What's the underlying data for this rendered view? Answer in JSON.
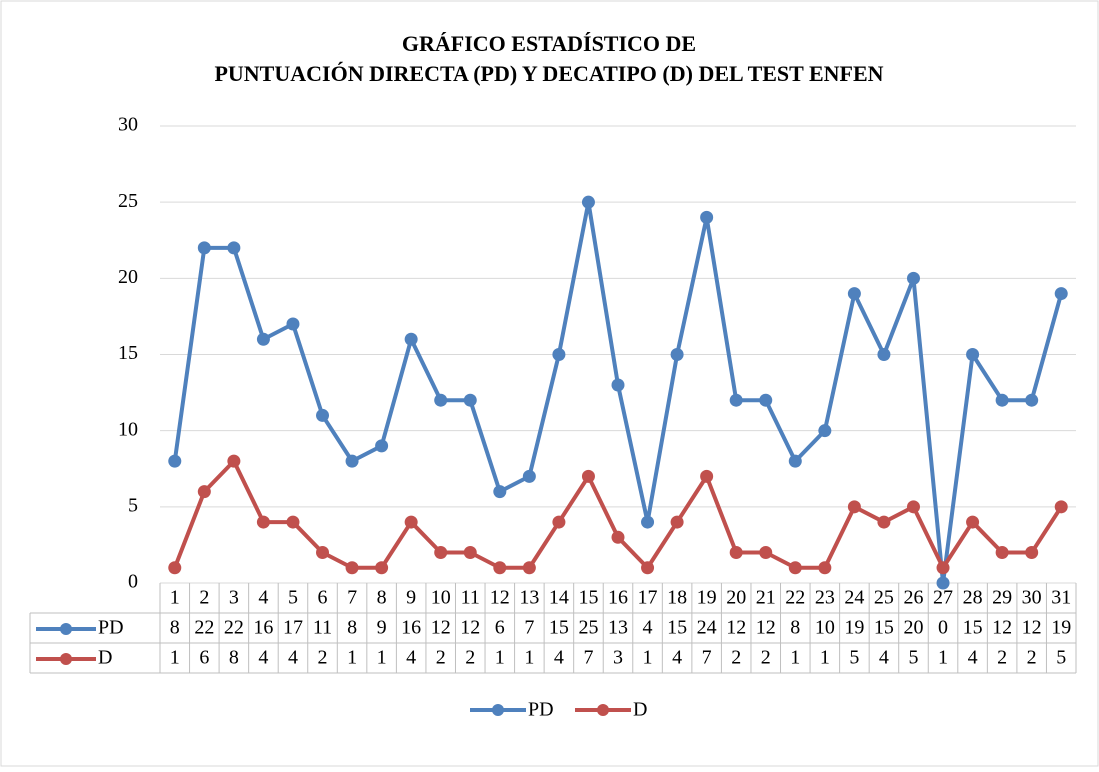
{
  "chart_data": {
    "type": "line",
    "title": "GRÁFICO ESTADÍSTICO DE",
    "subtitle": "PUNTUACIÓN DIRECTA (PD) Y DECATIPO (D) DEL TEST ENFEN",
    "categories": [
      "1",
      "2",
      "3",
      "4",
      "5",
      "6",
      "7",
      "8",
      "9",
      "10",
      "11",
      "12",
      "13",
      "14",
      "15",
      "16",
      "17",
      "18",
      "19",
      "20",
      "21",
      "22",
      "23",
      "24",
      "25",
      "26",
      "27",
      "28",
      "29",
      "30",
      "31"
    ],
    "series": [
      {
        "name": "PD",
        "color": "#4f81bd",
        "values": [
          8,
          22,
          22,
          16,
          17,
          11,
          8,
          9,
          16,
          12,
          12,
          6,
          7,
          15,
          25,
          13,
          4,
          15,
          24,
          12,
          12,
          8,
          10,
          19,
          15,
          20,
          0,
          15,
          12,
          12,
          19
        ]
      },
      {
        "name": "D",
        "color": "#c0504d",
        "values": [
          1,
          6,
          8,
          4,
          4,
          2,
          1,
          1,
          4,
          2,
          2,
          1,
          1,
          4,
          7,
          3,
          1,
          4,
          7,
          2,
          2,
          1,
          1,
          5,
          4,
          5,
          1,
          4,
          2,
          2,
          5
        ]
      }
    ],
    "ylim": [
      0,
      30
    ],
    "yticks": [
      0,
      5,
      10,
      15,
      20,
      25,
      30
    ],
    "grid": true,
    "legend": "bottom",
    "data_table": true
  }
}
